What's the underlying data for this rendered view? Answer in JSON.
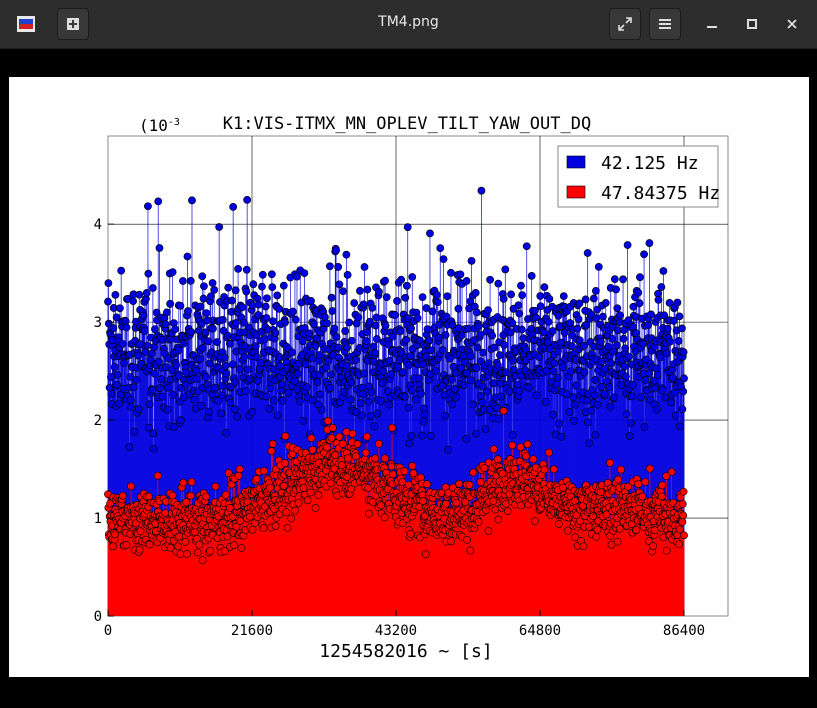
{
  "window": {
    "title": "TM4.png",
    "new_tab_icon": "plus-icon",
    "fullscreen_icon": "expand-icon",
    "menu_icon": "hamburger-icon",
    "minimize_icon": "minimize-icon",
    "maximize_icon": "maximize-icon",
    "close_icon": "close-icon"
  },
  "chart_data": {
    "type": "scatter",
    "title": "K1:VIS-ITMX_MN_OPLEV_TILT_YAW_OUT_DQ",
    "xlabel": "1254582016 ~ [s]",
    "ylabel": "",
    "y_exponent_label": "(10",
    "y_exponent_sup": "-3",
    "xlim": [
      0,
      93000
    ],
    "ylim": [
      0,
      0.0049
    ],
    "x_ticks": [
      "0",
      "21600",
      "43200",
      "64800",
      "86400"
    ],
    "y_ticks": [
      "0",
      "1",
      "2",
      "3",
      "4"
    ],
    "grid": true,
    "legend_position": "top-right",
    "series": [
      {
        "name": "42.125 Hz",
        "color": "#0000e0",
        "mean": 0.0027,
        "spread": 0.00065,
        "peak": 0.0049
      },
      {
        "name": "47.84375 Hz",
        "color": "#ff0000",
        "mean": 0.00098,
        "spread": 0.00028,
        "peak": 0.00265
      }
    ]
  }
}
